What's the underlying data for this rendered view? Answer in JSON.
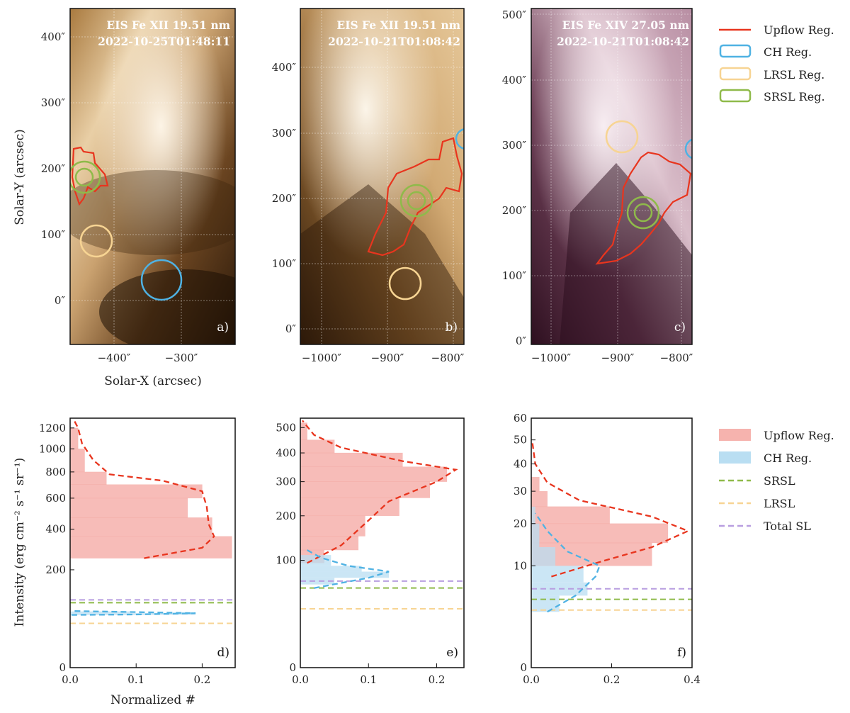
{
  "labels": {
    "x_top": "Solar-X (arcsec)",
    "y_top": "Solar-Y (arcsec)",
    "x_bottom": "Normalized #",
    "y_bottom": "Intensity (erg cm⁻² s⁻¹ sr⁻¹)"
  },
  "panels_top": [
    {
      "id": "a",
      "tag": "a)",
      "title_line1": "EIS Fe XII 19.51 nm",
      "title_line2": "2022-10-25T01:48:11",
      "xticks": [
        "−400″",
        "−300″"
      ],
      "yticks": [
        "0″",
        "100″",
        "200″",
        "300″",
        "400″"
      ]
    },
    {
      "id": "b",
      "tag": "b)",
      "title_line1": "EIS Fe XII 19.51 nm",
      "title_line2": "2022-10-21T01:08:42",
      "xticks": [
        "−1000″",
        "−900″",
        "−800″"
      ],
      "yticks": [
        "0″",
        "100″",
        "200″",
        "300″",
        "400″"
      ]
    },
    {
      "id": "c",
      "tag": "c)",
      "title_line1": "EIS Fe XIV 27.05 nm",
      "title_line2": "2022-10-21T01:08:42",
      "xticks": [
        "−1000″",
        "−900″",
        "−800″"
      ],
      "yticks": [
        "0″",
        "100″",
        "200″",
        "300″",
        "400″",
        "500″"
      ]
    }
  ],
  "legend_top": [
    {
      "label": "Upflow Reg.",
      "color": "#e8351e",
      "kind": "line"
    },
    {
      "label": "CH Reg.",
      "color": "#4fb2e3",
      "kind": "box"
    },
    {
      "label": "LRSL Reg.",
      "color": "#f7d493",
      "kind": "box"
    },
    {
      "label": "SRSL Reg.",
      "color": "#8fba4a",
      "kind": "box"
    }
  ],
  "legend_bottom": [
    {
      "label": "Upflow Reg.",
      "color": "#f4a6a0",
      "kind": "patch"
    },
    {
      "label": "CH Reg.",
      "color": "#b9def2",
      "kind": "patch"
    },
    {
      "label": "SRSL",
      "color": "#8fba4a",
      "kind": "dash"
    },
    {
      "label": "LRSL",
      "color": "#f7d493",
      "kind": "dash"
    },
    {
      "label": "Total SL",
      "color": "#b89ee0",
      "kind": "dash"
    }
  ],
  "chart_data": [
    {
      "panel": "d",
      "tag": "d)",
      "type": "histogram",
      "xlim": [
        0,
        0.25
      ],
      "xticks": [
        "0.0",
        "0.1",
        "0.2"
      ],
      "yticks": [
        "0",
        "200",
        "400",
        "600",
        "800",
        "1000",
        "1200"
      ],
      "upflow_bins": [
        [
          250,
          360,
          0.245
        ],
        [
          360,
          470,
          0.215
        ],
        [
          470,
          600,
          0.178
        ],
        [
          600,
          700,
          0.2
        ],
        [
          700,
          800,
          0.055
        ],
        [
          800,
          1000,
          0.022
        ],
        [
          1000,
          1200,
          0.012
        ]
      ],
      "upflow_kde": [
        [
          0.112,
          250
        ],
        [
          0.2,
          300
        ],
        [
          0.218,
          360
        ],
        [
          0.21,
          430
        ],
        [
          0.207,
          540
        ],
        [
          0.2,
          650
        ],
        [
          0.14,
          730
        ],
        [
          0.06,
          780
        ],
        [
          0.035,
          900
        ],
        [
          0.018,
          1050
        ],
        [
          0.012,
          1200
        ],
        [
          0.005,
          1290
        ]
      ],
      "ch_bins": [
        [
          58,
          62,
          0.19
        ],
        [
          62,
          66,
          0.09
        ]
      ],
      "ch_kde": [
        [
          0.002,
          58
        ],
        [
          0.1,
          59
        ],
        [
          0.19,
          62
        ],
        [
          0.08,
          65
        ],
        [
          0.002,
          67
        ]
      ],
      "srsl": 88,
      "lrsl": 41,
      "total_sl": 96
    },
    {
      "panel": "e",
      "tag": "e)",
      "type": "histogram",
      "xlim": [
        0,
        0.24
      ],
      "xticks": [
        "0.0",
        "0.1",
        "0.2"
      ],
      "yticks": [
        "0",
        "100",
        "200",
        "300",
        "400",
        "500"
      ],
      "upflow_bins": [
        [
          95,
          120,
          0.035
        ],
        [
          120,
          150,
          0.085
        ],
        [
          150,
          200,
          0.095
        ],
        [
          200,
          250,
          0.145
        ],
        [
          250,
          300,
          0.19
        ],
        [
          300,
          350,
          0.215
        ],
        [
          350,
          400,
          0.15
        ],
        [
          400,
          450,
          0.05
        ],
        [
          450,
          520,
          0.01
        ]
      ],
      "upflow_kde": [
        [
          0.01,
          95
        ],
        [
          0.06,
          130
        ],
        [
          0.095,
          180
        ],
        [
          0.13,
          240
        ],
        [
          0.2,
          300
        ],
        [
          0.228,
          340
        ],
        [
          0.15,
          370
        ],
        [
          0.06,
          420
        ],
        [
          0.02,
          470
        ],
        [
          0.003,
          530
        ]
      ],
      "ch_bins": [
        [
          60,
          70,
          0.05
        ],
        [
          70,
          80,
          0.13
        ],
        [
          80,
          90,
          0.09
        ],
        [
          90,
          110,
          0.045
        ]
      ],
      "ch_kde": [
        [
          0.02,
          55
        ],
        [
          0.1,
          70
        ],
        [
          0.13,
          80
        ],
        [
          0.07,
          90
        ],
        [
          0.03,
          105
        ],
        [
          0.01,
          120
        ]
      ],
      "srsl": 55,
      "lrsl": 30,
      "total_sl": 65
    },
    {
      "panel": "f",
      "tag": "f)",
      "type": "histogram",
      "xlim": [
        0,
        0.4
      ],
      "xticks": [
        "0.0",
        "0.2",
        "0.4"
      ],
      "yticks": [
        "0",
        "10",
        "20",
        "30",
        "40",
        "50",
        "60"
      ],
      "upflow_bins": [
        [
          10,
          15,
          0.3
        ],
        [
          15,
          20,
          0.34
        ],
        [
          20,
          25,
          0.195
        ],
        [
          25,
          30,
          0.04
        ],
        [
          30,
          35,
          0.02
        ]
      ],
      "upflow_kde": [
        [
          0.05,
          8
        ],
        [
          0.18,
          11
        ],
        [
          0.3,
          14
        ],
        [
          0.39,
          18
        ],
        [
          0.3,
          22
        ],
        [
          0.12,
          27
        ],
        [
          0.04,
          33
        ],
        [
          0.01,
          40
        ],
        [
          0.002,
          50
        ]
      ],
      "ch_bins": [
        [
          3,
          5,
          0.07
        ],
        [
          5,
          7,
          0.14
        ],
        [
          7,
          10,
          0.13
        ],
        [
          10,
          14,
          0.06
        ],
        [
          14,
          20,
          0.02
        ],
        [
          20,
          25,
          0.01
        ]
      ],
      "ch_kde": [
        [
          0.04,
          3
        ],
        [
          0.11,
          5
        ],
        [
          0.16,
          8
        ],
        [
          0.17,
          10
        ],
        [
          0.09,
          13
        ],
        [
          0.04,
          18
        ],
        [
          0.01,
          23
        ]
      ],
      "srsl": 4.5,
      "lrsl": 3.2,
      "total_sl": 6
    }
  ]
}
